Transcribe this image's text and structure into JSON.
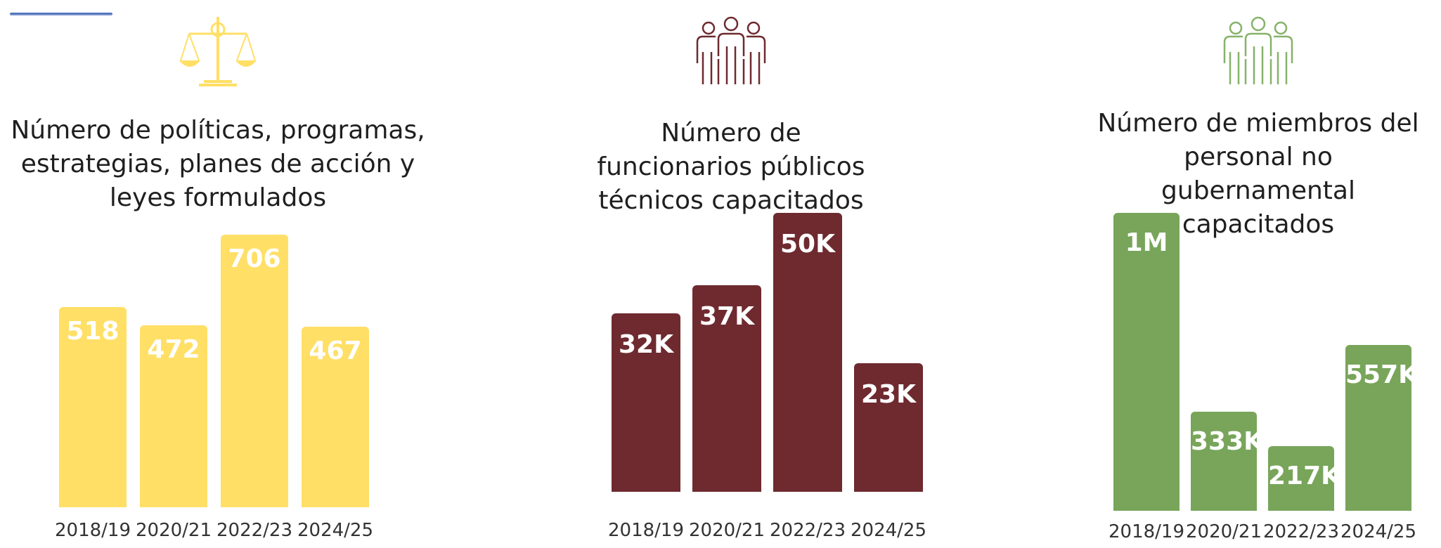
{
  "colors": {
    "yellow": "#ffdf66",
    "maroon": "#6e2a2f",
    "green": "#78a55a",
    "greenIcon": "#86b26a"
  },
  "icons": [
    "scales-of-justice-icon",
    "group-people-icon",
    "group-people-icon"
  ],
  "chart_data": [
    {
      "type": "bar",
      "title": "Número de políticas, programas, estrategias, planes de acción y leyes formulados",
      "categories": [
        "2018/19",
        "2020/21",
        "2022/23",
        "2024/25"
      ],
      "values": [
        518,
        472,
        706,
        467
      ],
      "data_labels": [
        "518",
        "472",
        "706",
        "467"
      ],
      "ylim": [
        0,
        706
      ],
      "grid": false,
      "color": "#ffdf66"
    },
    {
      "type": "bar",
      "title": "Número de funcionarios públicos técnicos capacitados",
      "categories": [
        "2018/19",
        "2020/21",
        "2022/23",
        "2024/25"
      ],
      "values": [
        32000,
        37000,
        50000,
        23000
      ],
      "data_labels": [
        "32K",
        "37K",
        "50K",
        "23K"
      ],
      "ylim": [
        0,
        50000
      ],
      "grid": false,
      "color": "#6e2a2f"
    },
    {
      "type": "bar",
      "title": "Número de miembros del personal no gubernamental capacitados",
      "categories": [
        "2018/19",
        "2020/21",
        "2022/23",
        "2024/25"
      ],
      "values": [
        1000000,
        333000,
        217000,
        557000
      ],
      "data_labels": [
        "1M",
        "333K",
        "217K",
        "557K"
      ],
      "ylim": [
        0,
        1000000
      ],
      "grid": false,
      "color": "#78a55a"
    }
  ]
}
